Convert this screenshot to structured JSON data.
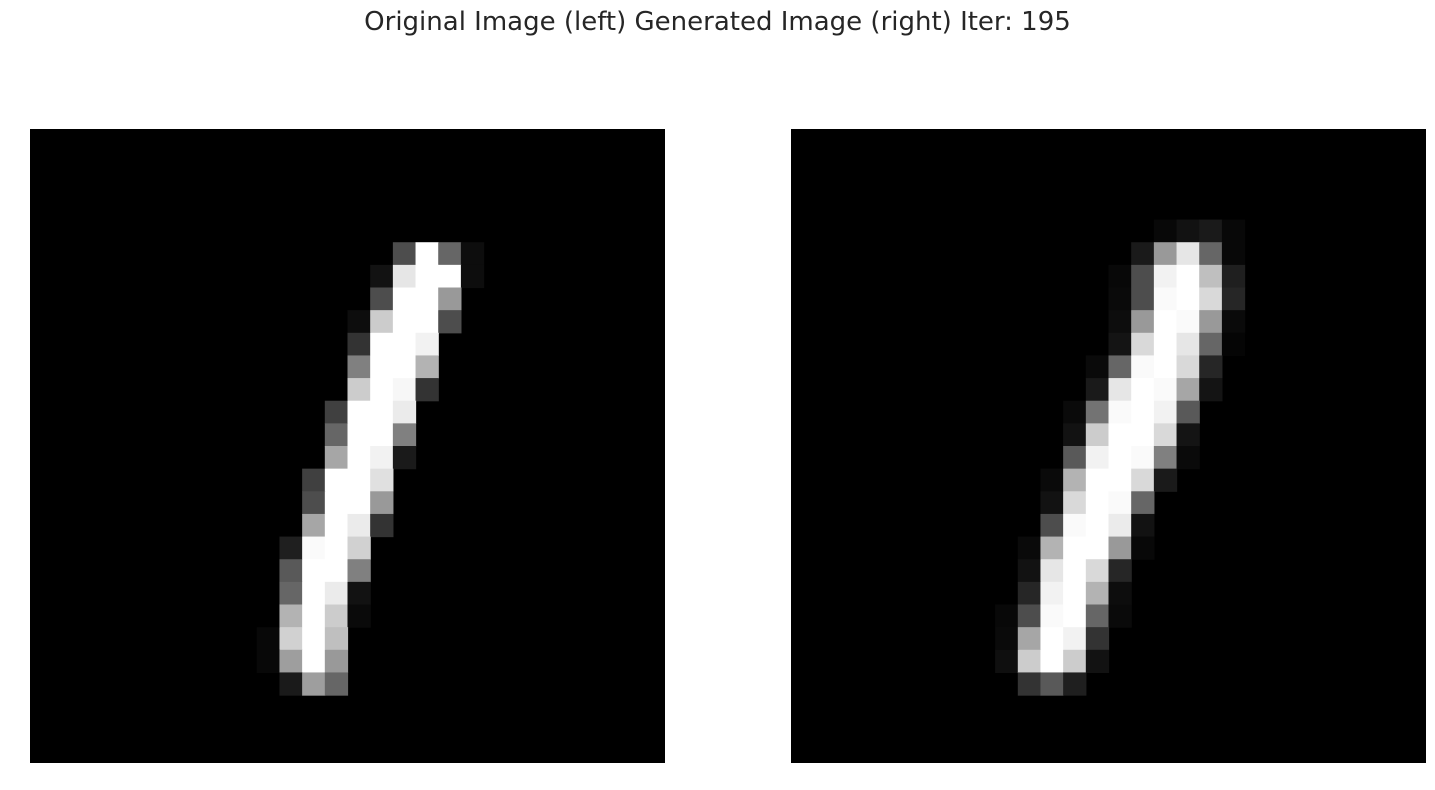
{
  "figure": {
    "title": "Original Image (left) Generated Image (right) Iter: 195"
  },
  "chart_data": [
    {
      "type": "heatmap",
      "grid_size": [
        28,
        28
      ],
      "colormap": "gray",
      "value_range": [
        0,
        1
      ],
      "axes": "off",
      "cells": [
        [
          5,
          16,
          0.3
        ],
        [
          5,
          17,
          1.0
        ],
        [
          5,
          18,
          0.4
        ],
        [
          5,
          19,
          0.05
        ],
        [
          6,
          15,
          0.07
        ],
        [
          6,
          16,
          0.9
        ],
        [
          6,
          17,
          1.0
        ],
        [
          6,
          18,
          1.0
        ],
        [
          6,
          19,
          0.05
        ],
        [
          7,
          15,
          0.3
        ],
        [
          7,
          16,
          1.0
        ],
        [
          7,
          17,
          1.0
        ],
        [
          7,
          18,
          0.6
        ],
        [
          8,
          14,
          0.05
        ],
        [
          8,
          15,
          0.8
        ],
        [
          8,
          16,
          1.0
        ],
        [
          8,
          17,
          1.0
        ],
        [
          8,
          18,
          0.3
        ],
        [
          9,
          14,
          0.2
        ],
        [
          9,
          15,
          1.0
        ],
        [
          9,
          16,
          1.0
        ],
        [
          9,
          17,
          0.95
        ],
        [
          10,
          14,
          0.5
        ],
        [
          10,
          15,
          1.0
        ],
        [
          10,
          16,
          1.0
        ],
        [
          10,
          17,
          0.7
        ],
        [
          11,
          14,
          0.8
        ],
        [
          11,
          15,
          1.0
        ],
        [
          11,
          16,
          0.97
        ],
        [
          11,
          17,
          0.2
        ],
        [
          12,
          13,
          0.25
        ],
        [
          12,
          14,
          1.0
        ],
        [
          12,
          15,
          1.0
        ],
        [
          12,
          16,
          0.92
        ],
        [
          13,
          13,
          0.4
        ],
        [
          13,
          14,
          1.0
        ],
        [
          13,
          15,
          1.0
        ],
        [
          13,
          16,
          0.5
        ],
        [
          14,
          13,
          0.65
        ],
        [
          14,
          14,
          1.0
        ],
        [
          14,
          15,
          0.95
        ],
        [
          14,
          16,
          0.1
        ],
        [
          15,
          12,
          0.25
        ],
        [
          15,
          13,
          1.0
        ],
        [
          15,
          14,
          1.0
        ],
        [
          15,
          15,
          0.88
        ],
        [
          16,
          12,
          0.3
        ],
        [
          16,
          13,
          1.0
        ],
        [
          16,
          14,
          1.0
        ],
        [
          16,
          15,
          0.6
        ],
        [
          17,
          12,
          0.65
        ],
        [
          17,
          13,
          1.0
        ],
        [
          17,
          14,
          0.92
        ],
        [
          17,
          15,
          0.2
        ],
        [
          18,
          11,
          0.12
        ],
        [
          18,
          12,
          0.98
        ],
        [
          18,
          13,
          1.0
        ],
        [
          18,
          14,
          0.82
        ],
        [
          19,
          11,
          0.35
        ],
        [
          19,
          12,
          1.0
        ],
        [
          19,
          13,
          1.0
        ],
        [
          19,
          14,
          0.5
        ],
        [
          20,
          11,
          0.4
        ],
        [
          20,
          12,
          1.0
        ],
        [
          20,
          13,
          0.92
        ],
        [
          20,
          14,
          0.07
        ],
        [
          21,
          11,
          0.7
        ],
        [
          21,
          12,
          1.0
        ],
        [
          21,
          13,
          0.8
        ],
        [
          21,
          14,
          0.04
        ],
        [
          22,
          10,
          0.03
        ],
        [
          22,
          11,
          0.82
        ],
        [
          22,
          12,
          1.0
        ],
        [
          22,
          13,
          0.75
        ],
        [
          23,
          10,
          0.03
        ],
        [
          23,
          11,
          0.62
        ],
        [
          23,
          12,
          1.0
        ],
        [
          23,
          13,
          0.6
        ],
        [
          24,
          11,
          0.1
        ],
        [
          24,
          12,
          0.62
        ],
        [
          24,
          13,
          0.4
        ]
      ]
    },
    {
      "type": "heatmap",
      "grid_size": [
        28,
        28
      ],
      "colormap": "gray",
      "value_range": [
        0,
        1
      ],
      "axes": "off",
      "cells": [
        [
          4,
          16,
          0.03
        ],
        [
          4,
          17,
          0.07
        ],
        [
          4,
          18,
          0.1
        ],
        [
          4,
          19,
          0.03
        ],
        [
          5,
          15,
          0.1
        ],
        [
          5,
          16,
          0.6
        ],
        [
          5,
          17,
          0.9
        ],
        [
          5,
          18,
          0.4
        ],
        [
          5,
          19,
          0.03
        ],
        [
          6,
          14,
          0.03
        ],
        [
          6,
          15,
          0.3
        ],
        [
          6,
          16,
          0.95
        ],
        [
          6,
          17,
          1.0
        ],
        [
          6,
          18,
          0.75
        ],
        [
          6,
          19,
          0.12
        ],
        [
          7,
          14,
          0.04
        ],
        [
          7,
          15,
          0.3
        ],
        [
          7,
          16,
          0.98
        ],
        [
          7,
          17,
          1.0
        ],
        [
          7,
          18,
          0.85
        ],
        [
          7,
          19,
          0.15
        ],
        [
          8,
          14,
          0.05
        ],
        [
          8,
          15,
          0.6
        ],
        [
          8,
          16,
          1.0
        ],
        [
          8,
          17,
          0.98
        ],
        [
          8,
          18,
          0.6
        ],
        [
          8,
          19,
          0.04
        ],
        [
          9,
          14,
          0.08
        ],
        [
          9,
          15,
          0.85
        ],
        [
          9,
          16,
          1.0
        ],
        [
          9,
          17,
          0.9
        ],
        [
          9,
          18,
          0.4
        ],
        [
          9,
          19,
          0.02
        ],
        [
          10,
          13,
          0.04
        ],
        [
          10,
          14,
          0.4
        ],
        [
          10,
          15,
          0.98
        ],
        [
          10,
          16,
          1.0
        ],
        [
          10,
          17,
          0.85
        ],
        [
          10,
          18,
          0.15
        ],
        [
          11,
          13,
          0.1
        ],
        [
          11,
          14,
          0.9
        ],
        [
          11,
          15,
          1.0
        ],
        [
          11,
          16,
          0.98
        ],
        [
          11,
          17,
          0.65
        ],
        [
          11,
          18,
          0.08
        ],
        [
          12,
          12,
          0.04
        ],
        [
          12,
          13,
          0.45
        ],
        [
          12,
          14,
          0.98
        ],
        [
          12,
          15,
          1.0
        ],
        [
          12,
          16,
          0.95
        ],
        [
          12,
          17,
          0.35
        ],
        [
          13,
          12,
          0.07
        ],
        [
          13,
          13,
          0.8
        ],
        [
          13,
          14,
          1.0
        ],
        [
          13,
          15,
          1.0
        ],
        [
          13,
          16,
          0.85
        ],
        [
          13,
          17,
          0.08
        ],
        [
          14,
          12,
          0.35
        ],
        [
          14,
          13,
          0.95
        ],
        [
          14,
          14,
          1.0
        ],
        [
          14,
          15,
          0.98
        ],
        [
          14,
          16,
          0.5
        ],
        [
          14,
          17,
          0.04
        ],
        [
          15,
          11,
          0.04
        ],
        [
          15,
          12,
          0.7
        ],
        [
          15,
          13,
          1.0
        ],
        [
          15,
          14,
          1.0
        ],
        [
          15,
          15,
          0.85
        ],
        [
          15,
          16,
          0.1
        ],
        [
          16,
          11,
          0.07
        ],
        [
          16,
          12,
          0.85
        ],
        [
          16,
          13,
          1.0
        ],
        [
          16,
          14,
          0.98
        ],
        [
          16,
          15,
          0.4
        ],
        [
          17,
          11,
          0.3
        ],
        [
          17,
          12,
          0.98
        ],
        [
          17,
          13,
          1.0
        ],
        [
          17,
          14,
          0.92
        ],
        [
          17,
          15,
          0.07
        ],
        [
          18,
          10,
          0.04
        ],
        [
          18,
          11,
          0.7
        ],
        [
          18,
          12,
          1.0
        ],
        [
          18,
          13,
          1.0
        ],
        [
          18,
          14,
          0.6
        ],
        [
          18,
          15,
          0.03
        ],
        [
          19,
          10,
          0.07
        ],
        [
          19,
          11,
          0.9
        ],
        [
          19,
          12,
          1.0
        ],
        [
          19,
          13,
          0.85
        ],
        [
          19,
          14,
          0.15
        ],
        [
          20,
          10,
          0.15
        ],
        [
          20,
          11,
          0.95
        ],
        [
          20,
          12,
          1.0
        ],
        [
          20,
          13,
          0.7
        ],
        [
          20,
          14,
          0.05
        ],
        [
          21,
          9,
          0.03
        ],
        [
          21,
          10,
          0.3
        ],
        [
          21,
          11,
          0.98
        ],
        [
          21,
          12,
          1.0
        ],
        [
          21,
          13,
          0.4
        ],
        [
          21,
          14,
          0.04
        ],
        [
          22,
          9,
          0.04
        ],
        [
          22,
          10,
          0.65
        ],
        [
          22,
          11,
          1.0
        ],
        [
          22,
          12,
          0.95
        ],
        [
          22,
          13,
          0.2
        ],
        [
          23,
          9,
          0.06
        ],
        [
          23,
          10,
          0.8
        ],
        [
          23,
          11,
          1.0
        ],
        [
          23,
          12,
          0.8
        ],
        [
          23,
          13,
          0.07
        ],
        [
          24,
          10,
          0.2
        ],
        [
          24,
          11,
          0.35
        ],
        [
          24,
          12,
          0.12
        ]
      ]
    }
  ]
}
